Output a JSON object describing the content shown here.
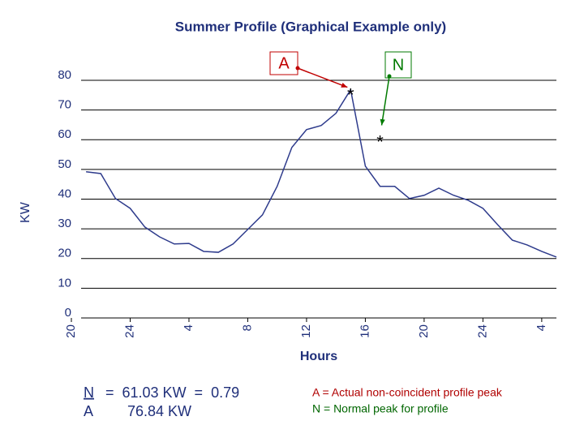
{
  "chart_data": {
    "type": "line",
    "title": "Summer Profile (Graphical Example only)",
    "x_label": "Hours",
    "y_label": "KW",
    "x": [
      21,
      22,
      23,
      24,
      25,
      26,
      27,
      28,
      29,
      30,
      31,
      32,
      33,
      34,
      35,
      36,
      37,
      38,
      39,
      40,
      41,
      42,
      43,
      44,
      45,
      46,
      47,
      48,
      49,
      50,
      51,
      52,
      53
    ],
    "series": [
      {
        "name": "Summer Profile",
        "color": "#2e3b8c",
        "values": [
          49.2,
          48.6,
          40.2,
          36.9,
          30.6,
          27.3,
          24.9,
          25.1,
          22.4,
          22.1,
          24.9,
          29.8,
          34.7,
          44.3,
          57.4,
          63.4,
          64.8,
          68.9,
          76.84,
          51.1,
          44.3,
          44.3,
          40.2,
          41.3,
          43.7,
          41.3,
          39.6,
          36.9,
          31.4,
          26.2,
          24.6,
          22.4,
          20.5
        ]
      }
    ],
    "xlim": [
      20,
      53
    ],
    "ylim": [
      0,
      80
    ],
    "yticks": [
      0,
      10,
      20,
      30,
      40,
      50,
      60,
      70,
      80
    ],
    "xticks": [
      20,
      24,
      {
        "value": 28,
        "label": "4"
      },
      {
        "value": 32,
        "label": "8"
      },
      {
        "value": 36,
        "label": "12"
      },
      {
        "value": 40,
        "label": "16"
      },
      {
        "value": 44,
        "label": "20"
      },
      {
        "value": 48,
        "label": "24"
      },
      {
        "value": 52,
        "label": "4"
      }
    ],
    "grid": true,
    "peaks": [
      {
        "label": "A",
        "marker": "*",
        "x": 39,
        "value": 76.84,
        "color": "#c00000"
      },
      {
        "label": "N",
        "marker": "*",
        "x": 41,
        "value": 61.03,
        "color": "#007a00"
      }
    ],
    "summary": [
      {
        "label": "N",
        "text": "=  61.03 KW  =  0.79"
      },
      {
        "label": "A",
        "text": "76.84 KW"
      }
    ],
    "notes": [
      {
        "text": "A = Actual non-coincident profile peak",
        "color": "#b00000"
      },
      {
        "text": "N = Normal peak for profile",
        "color": "#006600"
      }
    ]
  }
}
